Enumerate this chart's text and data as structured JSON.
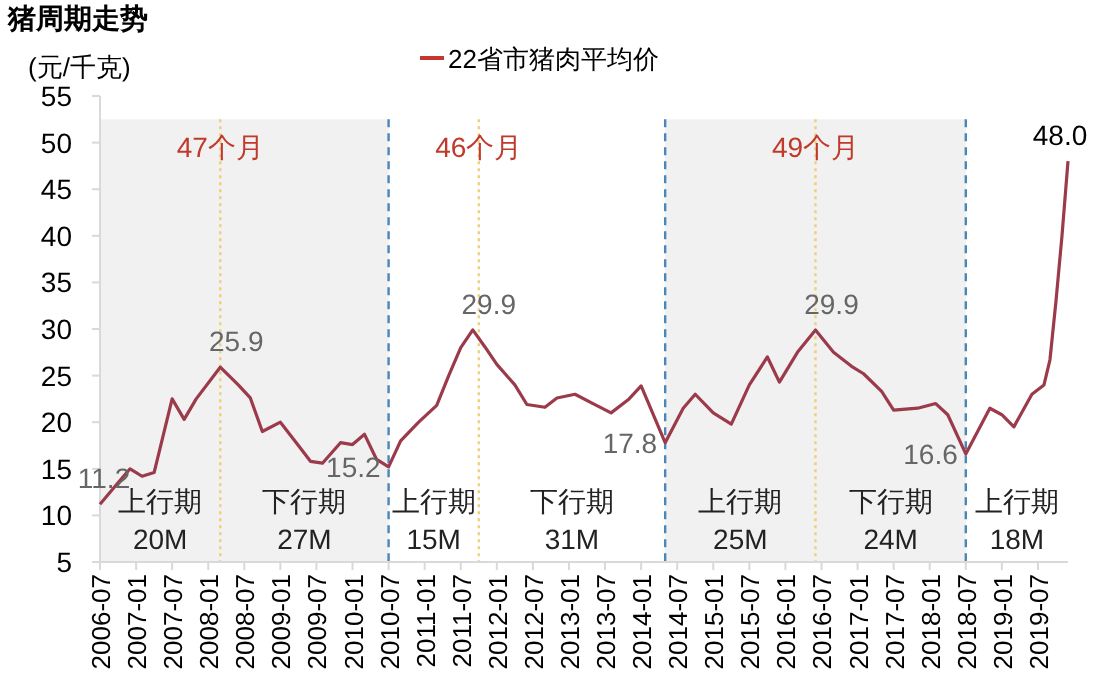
{
  "chart_data": {
    "type": "line",
    "title": "猪周期走势",
    "ylabel": "(元/千克)",
    "legend": "top",
    "grid": false,
    "marker": "none",
    "line_style": "solid",
    "xlim": [
      "2006-07",
      "2019-12"
    ],
    "ylim": [
      5,
      55
    ],
    "yticks": [
      5,
      10,
      15,
      20,
      25,
      30,
      35,
      40,
      45,
      50,
      55
    ],
    "xticks": [
      "2006-07",
      "2007-01",
      "2007-07",
      "2008-01",
      "2008-07",
      "2009-01",
      "2009-07",
      "2010-01",
      "2010-07",
      "2011-01",
      "2011-07",
      "2012-01",
      "2012-07",
      "2013-01",
      "2013-07",
      "2014-01",
      "2014-07",
      "2015-01",
      "2015-07",
      "2016-01",
      "2016-07",
      "2017-01",
      "2017-07",
      "2018-01",
      "2018-07",
      "2019-01",
      "2019-07"
    ],
    "series": [
      {
        "name": "22省市猪肉平均价",
        "color": "#9b3a4a",
        "x": [
          "2006-07",
          "2006-10",
          "2006-12",
          "2007-02",
          "2007-04",
          "2007-07",
          "2007-09",
          "2007-11",
          "2008-03",
          "2008-06",
          "2008-08",
          "2008-10",
          "2009-01",
          "2009-04",
          "2009-06",
          "2009-08",
          "2009-11",
          "2010-01",
          "2010-03",
          "2010-05",
          "2010-07",
          "2010-09",
          "2010-12",
          "2011-03",
          "2011-05",
          "2011-07",
          "2011-09",
          "2011-11",
          "2012-01",
          "2012-04",
          "2012-06",
          "2012-09",
          "2012-11",
          "2013-02",
          "2013-05",
          "2013-08",
          "2013-11",
          "2014-01",
          "2014-05",
          "2014-08",
          "2014-10",
          "2015-01",
          "2015-04",
          "2015-07",
          "2015-10",
          "2015-12",
          "2016-03",
          "2016-06",
          "2016-09",
          "2016-12",
          "2017-02",
          "2017-05",
          "2017-07",
          "2017-11",
          "2018-02",
          "2018-04",
          "2018-07",
          "2018-11",
          "2019-01",
          "2019-03",
          "2019-06",
          "2019-08",
          "2019-09",
          "2019-10",
          "2019-11",
          "2019-12"
        ],
        "values": [
          11.2,
          13.5,
          15,
          14.2,
          14.6,
          22.5,
          20.3,
          22.5,
          25.9,
          24,
          22.6,
          19,
          20,
          17.5,
          15.8,
          15.6,
          17.8,
          17.6,
          18.7,
          16,
          15.2,
          18,
          20,
          21.8,
          25,
          28,
          29.9,
          28.1,
          26.2,
          24,
          21.9,
          21.6,
          22.6,
          23,
          22,
          21,
          22.5,
          23.9,
          17.8,
          21.5,
          23,
          21,
          19.8,
          24,
          27,
          24.3,
          27.5,
          29.9,
          27.5,
          26,
          25.2,
          23.3,
          21.3,
          21.5,
          22,
          20.8,
          16.6,
          21.5,
          20.8,
          19.5,
          23,
          24,
          26.7,
          33,
          40,
          48.0
        ],
        "value_labels": [
          "11.2",
          null,
          null,
          null,
          null,
          null,
          null,
          null,
          "25.9",
          null,
          null,
          null,
          null,
          null,
          null,
          null,
          null,
          null,
          null,
          null,
          "15.2",
          null,
          null,
          null,
          null,
          null,
          "29.9",
          null,
          null,
          null,
          null,
          null,
          null,
          null,
          null,
          null,
          null,
          null,
          "17.8",
          null,
          null,
          null,
          null,
          null,
          null,
          null,
          null,
          "29.9",
          null,
          null,
          null,
          null,
          null,
          null,
          null,
          null,
          "16.6",
          null,
          null,
          null,
          null,
          null,
          null,
          null,
          null,
          "48.0"
        ]
      }
    ],
    "bands": [
      {
        "axis": "x",
        "from": "2006-07",
        "to": "2010-07",
        "color": "#f1f1f1"
      },
      {
        "axis": "x",
        "from": "2014-05",
        "to": "2018-07",
        "color": "#f1f1f1"
      }
    ],
    "ref_lines": [
      {
        "axis": "x",
        "value": "2010-07",
        "color": "#4a86b8",
        "line_style": "dashed"
      },
      {
        "axis": "x",
        "value": "2014-05",
        "color": "#4a86b8",
        "line_style": "dashed"
      },
      {
        "axis": "x",
        "value": "2018-07",
        "color": "#4a86b8",
        "line_style": "dashed"
      },
      {
        "axis": "x",
        "value": "2008-03",
        "color": "#efcf7a",
        "line_style": "dotted"
      },
      {
        "axis": "x",
        "value": "2011-10",
        "color": "#efcf7a",
        "line_style": "dotted"
      },
      {
        "axis": "x",
        "value": "2016-06",
        "color": "#efcf7a",
        "line_style": "dotted"
      }
    ],
    "annotations": [
      "47个月",
      "46个月",
      "49个月",
      "上行期",
      "20M",
      "下行期",
      "27M",
      "上行期",
      "15M",
      "下行期",
      "31M",
      "上行期",
      "25M",
      "下行期",
      "24M",
      "上行期",
      "18M"
    ]
  }
}
